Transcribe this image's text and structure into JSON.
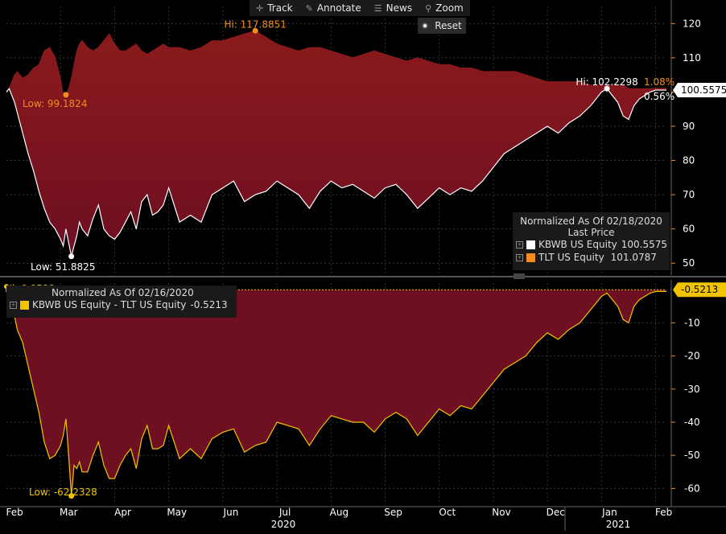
{
  "toolbar": {
    "track": "Track",
    "annotate": "Annotate",
    "news": "News",
    "zoom": "Zoom",
    "reset": "Reset"
  },
  "colors": {
    "fill_top": "#8a1a1c",
    "fill_bottom": "#6e0f22",
    "kbwb": "#ffffff",
    "tlt": "#f28c1e",
    "spread": "#f2c400",
    "axis_tick": "#f28c1e"
  },
  "top_panel": {
    "legend": {
      "title": "Normalized As Of 02/18/2020",
      "subtitle": "Last Price",
      "items": [
        {
          "name": "KBWB US Equity",
          "value": "100.5575",
          "color": "#ffffff"
        },
        {
          "name": "TLT US Equity",
          "value": "101.0787",
          "color": "#f28c1e"
        }
      ]
    },
    "annotations": {
      "tlt_hi": "Hi: 117.8851",
      "tlt_low": "Low: 99.1824",
      "kbwb_low": "Low: 51.8825",
      "kbwb_hi": "Hi: 102.2298",
      "tlt_change": "1.08%",
      "kbwb_change": "0.56%",
      "last_price_tag": "100.5575"
    }
  },
  "bottom_panel": {
    "legend": {
      "title": "Normalized As Of 02/16/2020",
      "items": [
        {
          "name": "KBWB US Equity - TLT US Equity",
          "value": "-0.5213",
          "color": "#f2c400"
        }
      ]
    },
    "annotations": {
      "hi": "Hi: 0.9599",
      "low": "Low: -62.2328",
      "last_value_tag": "-0.5213"
    }
  },
  "chart_data": [
    {
      "type": "line",
      "panel": "top",
      "ylim": [
        47,
        125
      ],
      "yticks": [
        50,
        60,
        70,
        80,
        90,
        100,
        110,
        120
      ],
      "x": [
        0,
        0.05,
        0.1,
        0.15,
        0.2,
        0.3,
        0.4,
        0.5,
        0.6,
        0.7,
        0.8,
        0.9,
        1.0,
        1.05,
        1.1,
        1.15,
        1.2,
        1.25,
        1.3,
        1.35,
        1.4,
        1.5,
        1.6,
        1.7,
        1.8,
        1.9,
        2.0,
        2.1,
        2.2,
        2.3,
        2.4,
        2.5,
        2.6,
        2.7,
        2.8,
        2.9,
        3.0,
        3.2,
        3.4,
        3.6,
        3.8,
        4.0,
        4.2,
        4.4,
        4.6,
        4.8,
        5.0,
        5.2,
        5.4,
        5.6,
        5.8,
        6.0,
        6.2,
        6.4,
        6.6,
        6.8,
        7.0,
        7.2,
        7.4,
        7.6,
        7.8,
        8.0,
        8.2,
        8.4,
        8.6,
        8.8,
        9.0,
        9.2,
        9.4,
        9.6,
        9.8,
        10.0,
        10.2,
        10.4,
        10.6,
        10.8,
        11.0,
        11.1,
        11.2,
        11.3,
        11.4,
        11.5,
        11.6,
        11.7,
        11.8,
        11.9,
        12.0,
        12.2
      ],
      "series": [
        {
          "name": "KBWB US Equity",
          "values": [
            100,
            101,
            99,
            97,
            94,
            88,
            82,
            77,
            71,
            66,
            62,
            60,
            57,
            55,
            60,
            56,
            52,
            55,
            58,
            62,
            60,
            58,
            63,
            67,
            60,
            58,
            57,
            59,
            62,
            65,
            60,
            68,
            70,
            64,
            65,
            67,
            72,
            62,
            64,
            62,
            70,
            72,
            74,
            68,
            70,
            71,
            74,
            72,
            70,
            66,
            71,
            74,
            72,
            73,
            71,
            69,
            72,
            73,
            70,
            66,
            69,
            72,
            70,
            72,
            71,
            74,
            78,
            82,
            84,
            86,
            88,
            90,
            88,
            91,
            93,
            96,
            100,
            101,
            99,
            97,
            93,
            92,
            96,
            98,
            99,
            100,
            100.5575,
            100.5575
          ]
        },
        {
          "name": "TLT US Equity",
          "values": [
            100,
            101,
            103,
            105,
            106,
            104,
            105,
            107,
            108,
            112,
            113,
            110,
            104,
            99,
            99.1824,
            101,
            104,
            108,
            112,
            114,
            115,
            113,
            112,
            113,
            115,
            117,
            114,
            112,
            112,
            113,
            114,
            112,
            111,
            112,
            113,
            114,
            113,
            113,
            112,
            113,
            115,
            115,
            116,
            117,
            117.8851,
            116,
            114,
            113,
            112,
            113,
            113,
            112,
            111,
            110,
            111,
            112,
            111,
            110,
            109,
            110,
            109,
            108,
            108,
            107,
            107,
            106,
            106,
            106,
            106,
            105,
            104,
            103,
            103,
            103,
            103,
            102,
            102,
            102,
            102,
            102,
            102,
            101,
            101,
            101,
            101,
            101,
            101.0787,
            101.0787
          ]
        }
      ]
    },
    {
      "type": "area",
      "panel": "bottom",
      "ylim": [
        -65,
        2
      ],
      "yticks": [
        -60,
        -50,
        -40,
        -30,
        -20,
        -10
      ],
      "x": [
        0,
        0.05,
        0.1,
        0.15,
        0.2,
        0.3,
        0.4,
        0.5,
        0.6,
        0.7,
        0.8,
        0.9,
        1.0,
        1.05,
        1.1,
        1.15,
        1.2,
        1.25,
        1.3,
        1.35,
        1.4,
        1.5,
        1.6,
        1.7,
        1.8,
        1.9,
        2.0,
        2.1,
        2.2,
        2.3,
        2.4,
        2.5,
        2.6,
        2.7,
        2.8,
        2.9,
        3.0,
        3.2,
        3.4,
        3.6,
        3.8,
        4.0,
        4.2,
        4.4,
        4.6,
        4.8,
        5.0,
        5.2,
        5.4,
        5.6,
        5.8,
        6.0,
        6.2,
        6.4,
        6.6,
        6.8,
        7.0,
        7.2,
        7.4,
        7.6,
        7.8,
        8.0,
        8.2,
        8.4,
        8.6,
        8.8,
        9.0,
        9.2,
        9.4,
        9.6,
        9.8,
        10.0,
        10.2,
        10.4,
        10.6,
        10.8,
        11.0,
        11.1,
        11.2,
        11.3,
        11.4,
        11.5,
        11.6,
        11.7,
        11.8,
        11.9,
        12.0,
        12.2
      ],
      "series": [
        {
          "name": "KBWB US Equity - TLT US Equity",
          "values": [
            0.9599,
            0,
            -4,
            -8,
            -12,
            -16,
            -23,
            -30,
            -37,
            -46,
            -51,
            -50,
            -47,
            -44,
            -39,
            -50,
            -62.2328,
            -53,
            -54,
            -52,
            -55,
            -55,
            -50,
            -46,
            -53,
            -57,
            -57,
            -53,
            -50,
            -48,
            -54,
            -45,
            -41,
            -48,
            -48,
            -47,
            -41,
            -51,
            -48,
            -51,
            -45,
            -43,
            -42,
            -49,
            -47,
            -46,
            -40,
            -41,
            -42,
            -47,
            -42,
            -38,
            -39,
            -40,
            -40,
            -43,
            -39,
            -37,
            -39,
            -44,
            -40,
            -36,
            -38,
            -35,
            -36,
            -32,
            -28,
            -24,
            -22,
            -20,
            -16,
            -13,
            -15,
            -12,
            -10,
            -6,
            -2,
            -1,
            -3,
            -5,
            -9,
            -10,
            -5,
            -3,
            -2,
            -1,
            -0.5213,
            -0.5213
          ]
        }
      ]
    }
  ],
  "x_axis": {
    "months": [
      "Feb",
      "Mar",
      "Apr",
      "May",
      "Jun",
      "Jul",
      "Aug",
      "Sep",
      "Oct",
      "Nov",
      "Dec",
      "Jan",
      "Feb"
    ],
    "years": [
      "2020",
      "2021"
    ]
  }
}
